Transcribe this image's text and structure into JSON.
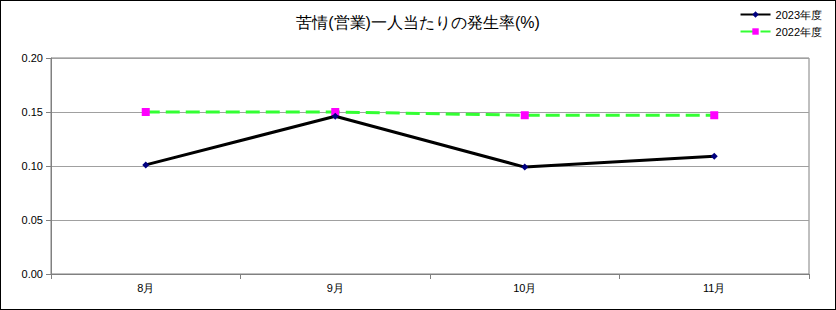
{
  "chart_data": {
    "type": "line",
    "title": "苦情(営業)一人当たりの発生率(%)",
    "categories": [
      "8月",
      "9月",
      "10月",
      "11月"
    ],
    "series": [
      {
        "name": "2023年度",
        "color": "#000000",
        "marker": "diamond",
        "line_style": "solid",
        "values": [
          0.101,
          0.146,
          0.099,
          0.109
        ]
      },
      {
        "name": "2022年度",
        "color": "#33ff33",
        "marker": "square",
        "line_style": "dashed",
        "values": [
          0.15,
          0.15,
          0.147,
          0.147
        ]
      }
    ],
    "ylim": [
      0,
      0.2
    ],
    "yticks": [
      {
        "value": 0,
        "label": "0.00"
      },
      {
        "value": 0.05,
        "label": "0.05"
      },
      {
        "value": 0.1,
        "label": "0.10"
      },
      {
        "value": 0.15,
        "label": "0.15"
      },
      {
        "value": 0.2,
        "label": "0.20"
      }
    ],
    "grid": true,
    "legend": "upper right"
  }
}
